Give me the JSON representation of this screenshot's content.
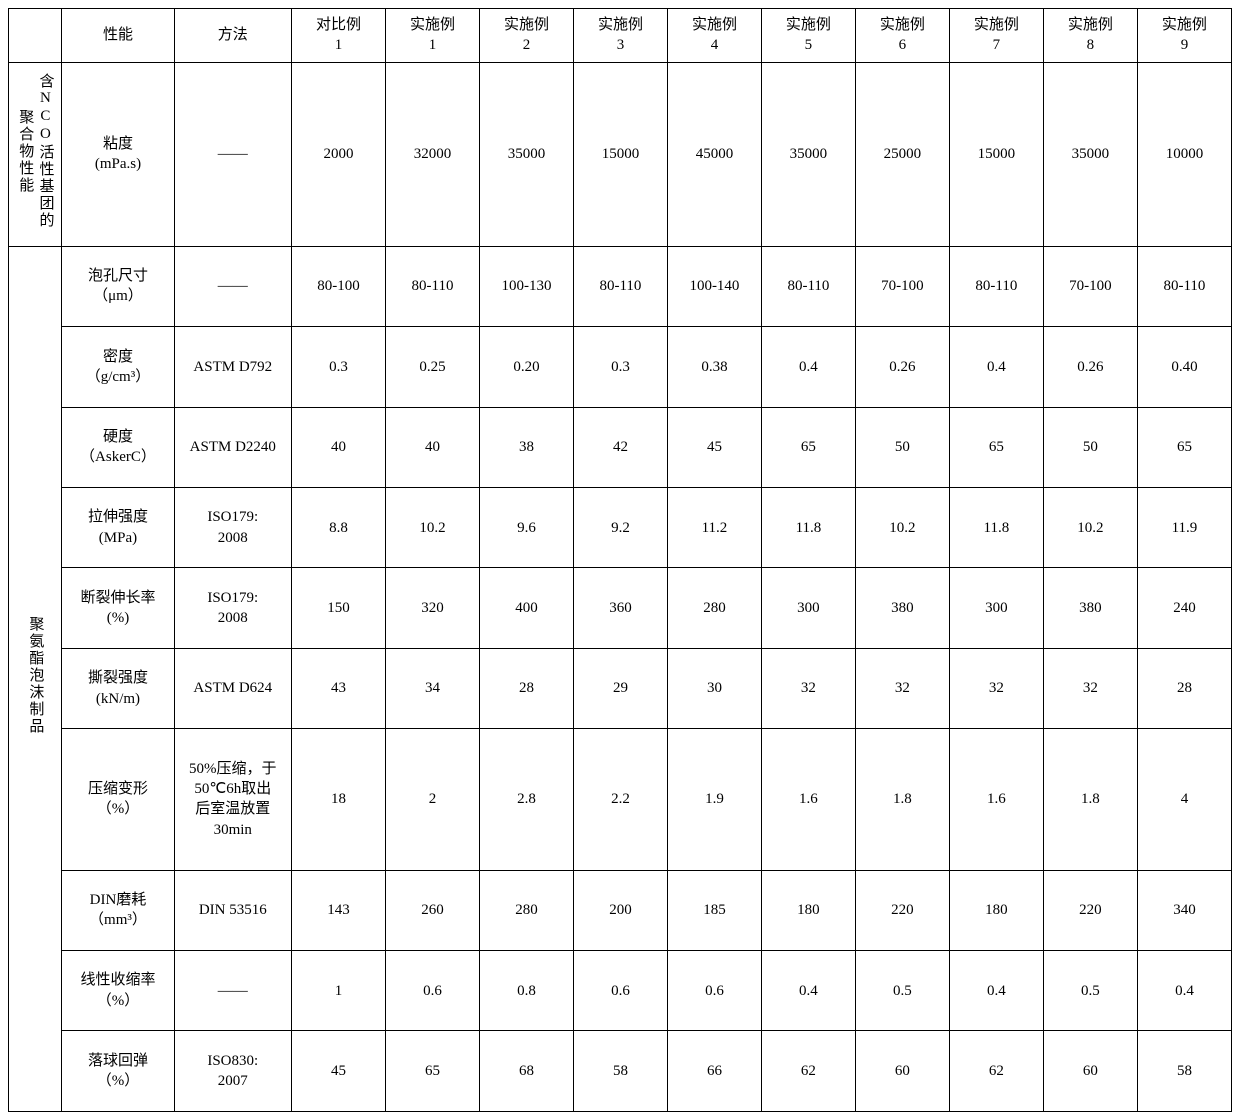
{
  "header": {
    "group": "",
    "property": "性能",
    "method": "方法",
    "cols": [
      "对比例\n1",
      "实施例\n1",
      "实施例\n2",
      "实施例\n3",
      "实施例\n4",
      "实施例\n5",
      "实施例\n6",
      "实施例\n7",
      "实施例\n8",
      "实施例\n9"
    ]
  },
  "group1": {
    "label": "含NCO活性基团的聚合物性能",
    "rows": [
      {
        "prop": "粘度\n(mPa.s)",
        "method": "——",
        "v": [
          "2000",
          "32000",
          "35000",
          "15000",
          "45000",
          "35000",
          "25000",
          "15000",
          "35000",
          "10000"
        ]
      }
    ]
  },
  "group2": {
    "label": "聚氨酯泡沫制品",
    "rows": [
      {
        "prop": "泡孔尺寸\n（μm）",
        "method": "——",
        "v": [
          "80-100",
          "80-110",
          "100-130",
          "80-110",
          "100-140",
          "80-110",
          "70-100",
          "80-110",
          "70-100",
          "80-110"
        ]
      },
      {
        "prop": "密度\n（g/cm³）",
        "method": "ASTM D792",
        "v": [
          "0.3",
          "0.25",
          "0.20",
          "0.3",
          "0.38",
          "0.4",
          "0.26",
          "0.4",
          "0.26",
          "0.40"
        ]
      },
      {
        "prop": "硬度\n（AskerC）",
        "method": "ASTM D2240",
        "v": [
          "40",
          "40",
          "38",
          "42",
          "45",
          "65",
          "50",
          "65",
          "50",
          "65"
        ]
      },
      {
        "prop": "拉伸强度\n(MPa)",
        "method": "ISO179:\n2008",
        "v": [
          "8.8",
          "10.2",
          "9.6",
          "9.2",
          "11.2",
          "11.8",
          "10.2",
          "11.8",
          "10.2",
          "11.9"
        ]
      },
      {
        "prop": "断裂伸长率\n(%)",
        "method": "ISO179:\n2008",
        "v": [
          "150",
          "320",
          "400",
          "360",
          "280",
          "300",
          "380",
          "300",
          "380",
          "240"
        ]
      },
      {
        "prop": "撕裂强度\n(kN/m)",
        "method": "ASTM D624",
        "v": [
          "43",
          "34",
          "28",
          "29",
          "30",
          "32",
          "32",
          "32",
          "32",
          "28"
        ]
      },
      {
        "prop": "压缩变形\n（%）",
        "method": "50%压缩，于\n50℃6h取出\n后室温放置\n30min",
        "v": [
          "18",
          "2",
          "2.8",
          "2.2",
          "1.9",
          "1.6",
          "1.8",
          "1.6",
          "1.8",
          "4"
        ]
      },
      {
        "prop": "DIN磨耗\n（mm³）",
        "method": "DIN 53516",
        "v": [
          "143",
          "260",
          "280",
          "200",
          "185",
          "180",
          "220",
          "180",
          "220",
          "340"
        ]
      },
      {
        "prop": "线性收缩率\n（%）",
        "method": "——",
        "v": [
          "1",
          "0.6",
          "0.8",
          "0.6",
          "0.6",
          "0.4",
          "0.5",
          "0.4",
          "0.5",
          "0.4"
        ]
      },
      {
        "prop": "落球回弹\n（%）",
        "method": "ISO830:\n2007",
        "v": [
          "45",
          "65",
          "68",
          "58",
          "66",
          "62",
          "60",
          "62",
          "60",
          "58"
        ]
      }
    ]
  }
}
